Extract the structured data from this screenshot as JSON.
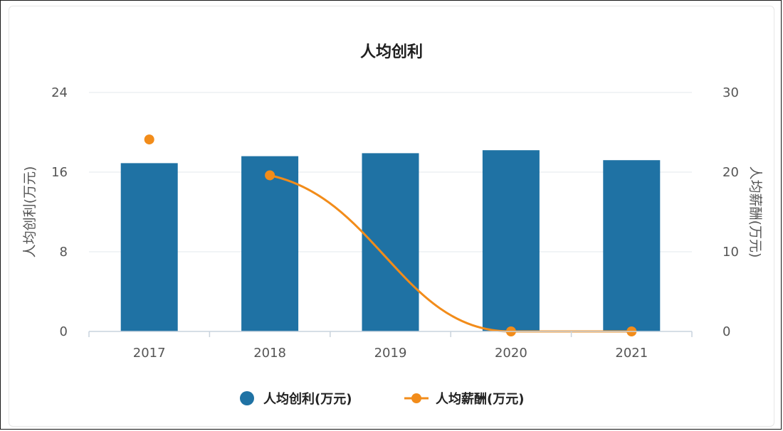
{
  "chart_data": {
    "type": "bar+line",
    "title": "人均创利",
    "categories": [
      "2017",
      "2018",
      "2019",
      "2020",
      "2021"
    ],
    "series": [
      {
        "name": "人均创利(万元)",
        "type": "bar",
        "axis": "left",
        "color": "#1f72a4",
        "values": [
          16.9,
          17.6,
          17.9,
          18.2,
          17.2
        ]
      },
      {
        "name": "人均薪酬(万元)",
        "type": "line",
        "axis": "right",
        "color": "#f28c1a",
        "values": [
          24.1,
          19.6,
          null,
          0,
          0
        ],
        "line_segments": [
          [
            1,
            4
          ]
        ],
        "note_first_point_isolated": true
      }
    ],
    "y_left": {
      "label": "人均创利(万元)",
      "ticks": [
        "0",
        "8",
        "16",
        "24"
      ],
      "range": [
        0,
        24
      ]
    },
    "y_right": {
      "label": "人均薪酬(万元)",
      "ticks": [
        "0",
        "10",
        "20",
        "30"
      ],
      "range": [
        0,
        30
      ]
    },
    "grid": true,
    "legend_position": "bottom"
  }
}
